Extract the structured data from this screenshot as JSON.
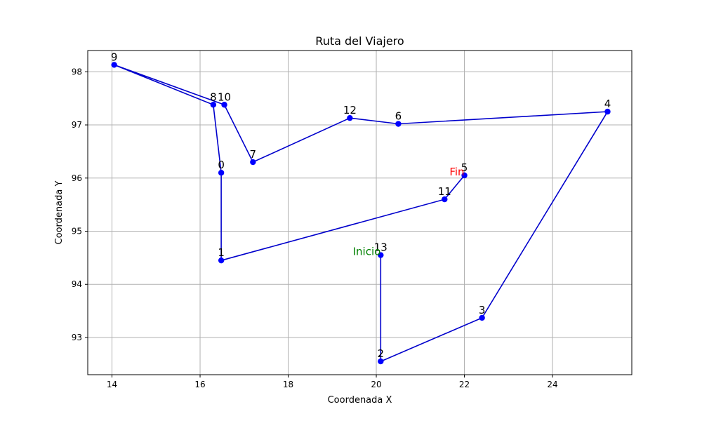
{
  "chart_data": {
    "type": "line",
    "title": "Ruta del Viajero",
    "xlabel": "Coordenada X",
    "ylabel": "Coordenada Y",
    "xlim": [
      13.45,
      25.8
    ],
    "ylim": [
      92.3,
      98.4
    ],
    "xticks": [
      14,
      16,
      18,
      20,
      22,
      24
    ],
    "yticks": [
      93,
      94,
      95,
      96,
      97,
      98
    ],
    "grid": true,
    "line_color": "#0000cc",
    "marker_color": "#0000ff",
    "points": [
      {
        "label": "0",
        "x": 16.48,
        "y": 96.1
      },
      {
        "label": "1",
        "x": 16.48,
        "y": 94.45
      },
      {
        "label": "2",
        "x": 20.1,
        "y": 92.55
      },
      {
        "label": "3",
        "x": 22.4,
        "y": 93.37
      },
      {
        "label": "4",
        "x": 25.25,
        "y": 97.25
      },
      {
        "label": "5",
        "x": 22.0,
        "y": 96.05
      },
      {
        "label": "6",
        "x": 20.5,
        "y": 97.02
      },
      {
        "label": "7",
        "x": 17.2,
        "y": 96.3
      },
      {
        "label": "8",
        "x": 16.3,
        "y": 97.38
      },
      {
        "label": "9",
        "x": 14.05,
        "y": 98.13
      },
      {
        "label": "10",
        "x": 16.55,
        "y": 97.38
      },
      {
        "label": "11",
        "x": 21.55,
        "y": 95.6
      },
      {
        "label": "12",
        "x": 19.4,
        "y": 97.13
      },
      {
        "label": "13",
        "x": 20.1,
        "y": 94.55
      }
    ],
    "route": [
      13,
      2,
      3,
      4,
      6,
      12,
      7,
      10,
      9,
      8,
      0,
      1,
      11,
      5
    ],
    "annotations": [
      {
        "text": "Inicio",
        "point": "13",
        "color": "#008000"
      },
      {
        "text": "Fin",
        "point": "5",
        "color": "#ff0000"
      }
    ]
  }
}
